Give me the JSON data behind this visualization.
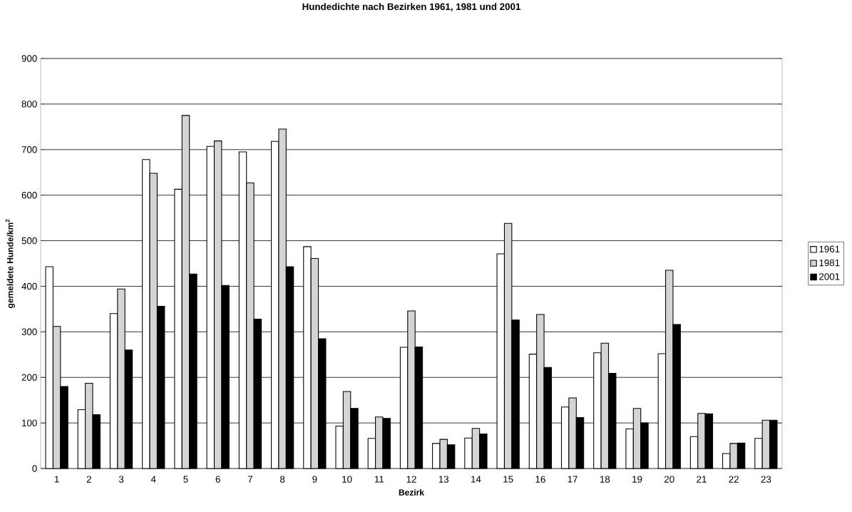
{
  "chart_data": {
    "type": "bar",
    "title": "Hundedichte nach Bezirken 1961, 1981 und 2001",
    "xlabel": "Bezirk",
    "ylabel": "gemeldete Hunde/km$^{2}$",
    "categories": [
      "1",
      "2",
      "3",
      "4",
      "5",
      "6",
      "7",
      "8",
      "9",
      "10",
      "11",
      "12",
      "13",
      "14",
      "15",
      "16",
      "17",
      "18",
      "19",
      "20",
      "21",
      "22",
      "23"
    ],
    "series": [
      {
        "name": "1961",
        "color": "#ffffff",
        "values": [
          443,
          129,
          340,
          678,
          613,
          707,
          695,
          718,
          487,
          93,
          66,
          266,
          55,
          67,
          471,
          251,
          135,
          254,
          87,
          252,
          70,
          33,
          66
        ]
      },
      {
        "name": "1981",
        "color": "#d4d4d4",
        "values": [
          312,
          187,
          394,
          648,
          775,
          719,
          627,
          745,
          461,
          169,
          113,
          346,
          64,
          88,
          538,
          338,
          155,
          275,
          132,
          435,
          121,
          55,
          106
        ]
      },
      {
        "name": "2001",
        "color": "#000000",
        "values": [
          180,
          118,
          260,
          356,
          427,
          402,
          328,
          443,
          285,
          132,
          110,
          267,
          52,
          76,
          326,
          222,
          112,
          209,
          100,
          316,
          120,
          56,
          106
        ]
      }
    ],
    "ylim": [
      0,
      900
    ],
    "yticks": [
      0,
      100,
      200,
      300,
      400,
      500,
      600,
      700,
      800,
      900
    ],
    "grid": "y",
    "legend": "right"
  }
}
